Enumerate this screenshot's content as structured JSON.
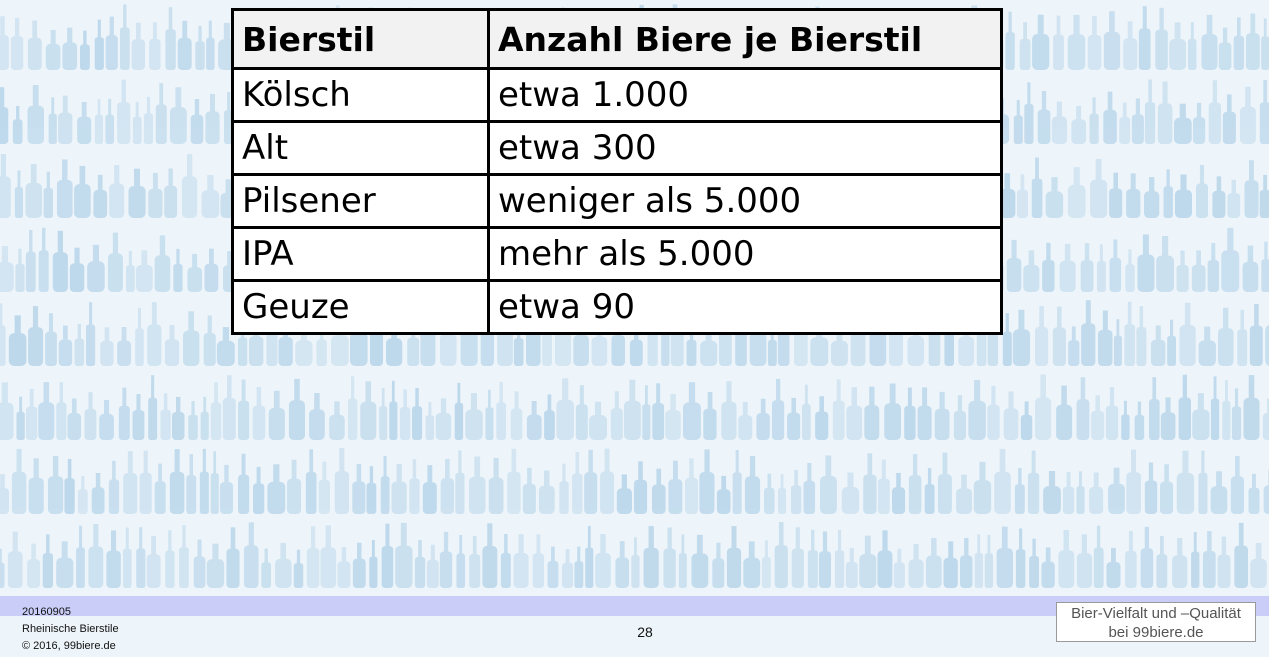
{
  "table": {
    "headers": [
      "Bierstil",
      "Anzahl Biere je Bierstil"
    ],
    "rows": [
      [
        "Kölsch",
        "etwa 1.000"
      ],
      [
        "Alt",
        "etwa 300"
      ],
      [
        "Pilsener",
        "weniger als 5.000"
      ],
      [
        "IPA",
        "mehr als 5.000"
      ],
      [
        "Geuze",
        "etwa 90"
      ]
    ]
  },
  "footer": {
    "date": "20160905",
    "subject": "Rheinische Bierstile",
    "copyright": "© 2016, 99biere.de",
    "page_number": "28",
    "brand_line1": "Bier-Vielfalt und –Qualität",
    "brand_line2": "bei 99biere.de"
  },
  "colors": {
    "background": "#eef5fa",
    "bottles": "#a9cde6",
    "footer_band": "#c9cdf7",
    "header_cell": "#f2f2f2"
  },
  "background_image": "bottle-shelf-pattern"
}
